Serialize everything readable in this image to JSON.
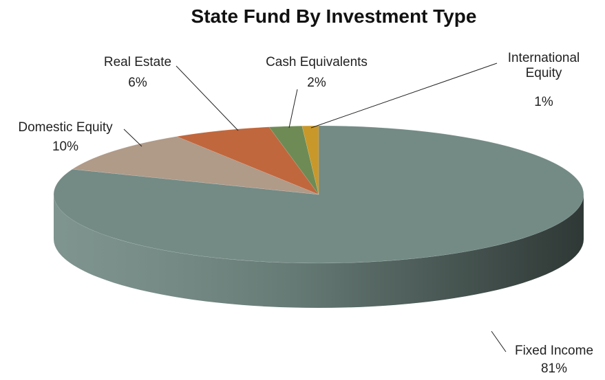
{
  "chart_data": {
    "type": "pie",
    "title": "State Fund By Investment Type",
    "categories": [
      "Fixed Income",
      "Domestic Equity",
      "Real Estate",
      "Cash Equivalents",
      "International Equity"
    ],
    "values": [
      81,
      10,
      6,
      2,
      1
    ],
    "value_labels": [
      "81%",
      "10%",
      "6%",
      "2%",
      "1%"
    ],
    "colors": [
      "#748b85",
      "#b09a88",
      "#c0673e",
      "#6e8b55",
      "#c8982a"
    ]
  }
}
